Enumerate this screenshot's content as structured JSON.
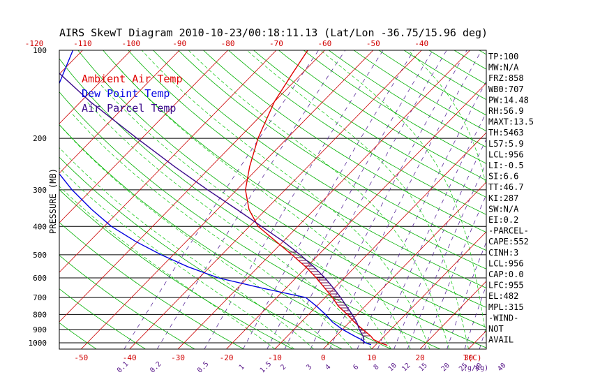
{
  "title": "AIRS SkewT Diagram 2010-10-23/00:18:11.13 (Lat/Lon -36.75/15.96 deg)",
  "colors": {
    "ambient": "#e00000",
    "dewpoint": "#0000e0",
    "parcel": "#3a0a8a",
    "isotherm": "#cc0000",
    "dry_adiabat": "#00b000",
    "moist_adiabat": "#22cc22",
    "mixing_ratio": "#5a2a9a",
    "isobar": "#000000",
    "hatch": "#6a1050"
  },
  "chart_data": {
    "type": "line",
    "title": "AIRS SkewT Diagram 2010-10-23/00:18:11.13 (Lat/Lon -36.75/15.96 deg)",
    "ylabel": "PRESSURE (MB)",
    "y_scale": "log",
    "ylim": [
      1050,
      100
    ],
    "pressure_ticks": [
      100,
      200,
      300,
      400,
      500,
      600,
      700,
      800,
      900,
      1000
    ],
    "top_temp_ticks": [
      -120,
      -110,
      -100,
      -90,
      -80,
      -70,
      -60,
      -50,
      -40
    ],
    "bottom_temp_ticks": [
      -50,
      -40,
      -30,
      -20,
      -10,
      0,
      10,
      20,
      30
    ],
    "bottom_axis_unit": "T(C)",
    "mixing_ratio_ticks": [
      "0.1",
      "0.2",
      "0.5",
      "1",
      "1.5",
      "2",
      "3",
      "4",
      "6",
      "8",
      "10",
      "12",
      "15",
      "20",
      "25",
      "30",
      "40"
    ],
    "mixing_ratio_unit": "(g/kg)",
    "legend": [
      {
        "label": "Ambient Air Temp",
        "color_key": "ambient"
      },
      {
        "label": "Dew Point Temp",
        "color_key": "dewpoint"
      },
      {
        "label": "Air Parcel Temp",
        "color_key": "parcel"
      }
    ],
    "series": [
      {
        "name": "Ambient Air Temp",
        "color_key": "ambient",
        "points": [
          [
            1020,
            12.5
          ],
          [
            1000,
            10.5
          ],
          [
            975,
            8.5
          ],
          [
            950,
            7.3
          ],
          [
            925,
            5.8
          ],
          [
            900,
            4.2
          ],
          [
            850,
            1.0
          ],
          [
            800,
            -2.0
          ],
          [
            750,
            -5.5
          ],
          [
            700,
            -8.5
          ],
          [
            650,
            -12.0
          ],
          [
            600,
            -15.8
          ],
          [
            550,
            -20.2
          ],
          [
            500,
            -25.5
          ],
          [
            450,
            -31.5
          ],
          [
            400,
            -38.2
          ],
          [
            350,
            -43.5
          ],
          [
            300,
            -48.2
          ],
          [
            250,
            -52.0
          ],
          [
            200,
            -56.0
          ],
          [
            150,
            -60.0
          ],
          [
            120,
            -62.0
          ],
          [
            100,
            -63.5
          ]
        ]
      },
      {
        "name": "Dew Point Temp",
        "color_key": "dewpoint",
        "points": [
          [
            1015,
            9.0
          ],
          [
            1000,
            7.5
          ],
          [
            975,
            6.0
          ],
          [
            950,
            4.0
          ],
          [
            900,
            0.0
          ],
          [
            850,
            -3.5
          ],
          [
            800,
            -6.5
          ],
          [
            750,
            -10.0
          ],
          [
            700,
            -14.0
          ],
          [
            650,
            -25.0
          ],
          [
            600,
            -36.0
          ],
          [
            550,
            -44.5
          ],
          [
            500,
            -52.5
          ],
          [
            450,
            -60.5
          ],
          [
            400,
            -68.5
          ],
          [
            350,
            -76.0
          ],
          [
            300,
            -84.0
          ],
          [
            250,
            -92.5
          ],
          [
            200,
            -99.0
          ],
          [
            150,
            -106.0
          ],
          [
            100,
            -112.0
          ]
        ]
      },
      {
        "name": "Air Parcel Temp",
        "color_key": "parcel",
        "points": [
          [
            1010,
            7.3
          ],
          [
            956,
            5.9
          ],
          [
            900,
            3.5
          ],
          [
            850,
            1.5
          ],
          [
            800,
            -1.0
          ],
          [
            750,
            -3.8
          ],
          [
            700,
            -6.8
          ],
          [
            650,
            -10.2
          ],
          [
            600,
            -14.0
          ],
          [
            550,
            -18.5
          ],
          [
            500,
            -23.8
          ],
          [
            450,
            -30.0
          ],
          [
            400,
            -37.5
          ],
          [
            350,
            -46.0
          ],
          [
            300,
            -56.0
          ],
          [
            250,
            -67.5
          ],
          [
            200,
            -81.0
          ],
          [
            150,
            -98.0
          ],
          [
            100,
            -120.0
          ]
        ]
      }
    ],
    "cape_region": {
      "from_mb": 955,
      "to_mb": 482
    }
  },
  "indices": [
    "TP:100",
    "MW:N/A",
    "FRZ:858",
    "WB0:707",
    "PW:14.48",
    "RH:56.9",
    "MAXT:13.5",
    "TH:5463",
    "L57:5.9",
    "LCL:956",
    "LI:-0.5",
    "SI:6.6",
    "TT:46.7",
    "KI:287",
    "SW:N/A",
    "EI:0.2",
    "-PARCEL-",
    "CAPE:552",
    "CINH:3",
    "LCL:956",
    "CAP:0.0",
    "LFC:955",
    "EL:482",
    "MPL:315",
    "-WIND-",
    "NOT",
    "AVAIL"
  ]
}
